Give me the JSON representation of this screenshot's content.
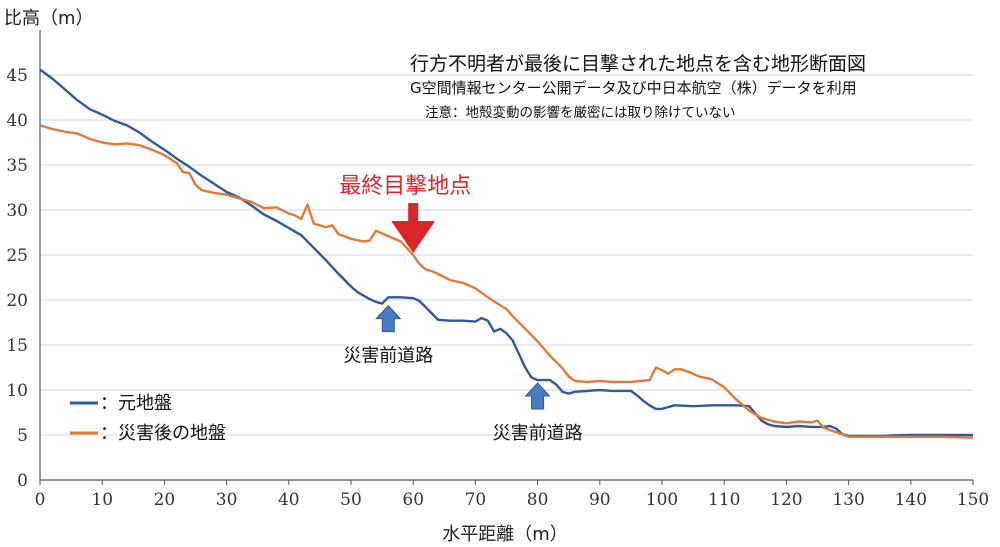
{
  "chart_data": {
    "type": "line",
    "title": "行方不明者が最後に目撃された地点を含む地形断面図",
    "subtitle": "G空間情報センター公開データ及び中日本航空（株）データを利用",
    "note": "注意：地殻変動の影響を厳密には取り除けていない",
    "xlabel": "水平距離（m）",
    "ylabel": "比高（m）",
    "xlim": [
      0,
      150
    ],
    "ylim": [
      0,
      50
    ],
    "xticks": [
      "0",
      "10",
      "20",
      "30",
      "40",
      "50",
      "60",
      "70",
      "80",
      "90",
      "100",
      "110",
      "120",
      "130",
      "140",
      "150"
    ],
    "yticks": [
      "0",
      "5",
      "10",
      "15",
      "20",
      "25",
      "30",
      "35",
      "40",
      "45"
    ],
    "grid": "horizontal",
    "legend_position": "bottom-left",
    "series": [
      {
        "name": "：元地盤",
        "color": "#2e5a9c",
        "points": [
          [
            0,
            45.6
          ],
          [
            2,
            44.6
          ],
          [
            4,
            43.4
          ],
          [
            6,
            42.2
          ],
          [
            8,
            41.2
          ],
          [
            10,
            40.6
          ],
          [
            12,
            39.9
          ],
          [
            14,
            39.4
          ],
          [
            16,
            38.6
          ],
          [
            18,
            37.6
          ],
          [
            20,
            36.7
          ],
          [
            22,
            35.7
          ],
          [
            24,
            34.8
          ],
          [
            26,
            33.8
          ],
          [
            28,
            32.9
          ],
          [
            30,
            32.0
          ],
          [
            32,
            31.4
          ],
          [
            34,
            30.5
          ],
          [
            36,
            29.5
          ],
          [
            38,
            28.8
          ],
          [
            40,
            28.0
          ],
          [
            42,
            27.2
          ],
          [
            44,
            25.8
          ],
          [
            46,
            24.4
          ],
          [
            48,
            22.9
          ],
          [
            50,
            21.5
          ],
          [
            51,
            20.9
          ],
          [
            52,
            20.5
          ],
          [
            53,
            20.1
          ],
          [
            54,
            19.8
          ],
          [
            55,
            19.6
          ],
          [
            56,
            20.3
          ],
          [
            58,
            20.3
          ],
          [
            60,
            20.2
          ],
          [
            61,
            19.9
          ],
          [
            62,
            19.2
          ],
          [
            63,
            18.5
          ],
          [
            64,
            17.8
          ],
          [
            66,
            17.7
          ],
          [
            68,
            17.7
          ],
          [
            70,
            17.6
          ],
          [
            71,
            18.0
          ],
          [
            72,
            17.7
          ],
          [
            73,
            16.5
          ],
          [
            74,
            16.8
          ],
          [
            75,
            16.3
          ],
          [
            76,
            15.5
          ],
          [
            77,
            14.0
          ],
          [
            78,
            12.5
          ],
          [
            79,
            11.4
          ],
          [
            80,
            11.1
          ],
          [
            82,
            11.1
          ],
          [
            83,
            10.6
          ],
          [
            84,
            9.8
          ],
          [
            85,
            9.6
          ],
          [
            86,
            9.8
          ],
          [
            88,
            9.9
          ],
          [
            90,
            10.0
          ],
          [
            92,
            9.9
          ],
          [
            95,
            9.9
          ],
          [
            96,
            9.4
          ],
          [
            97,
            8.8
          ],
          [
            98,
            8.3
          ],
          [
            99,
            7.9
          ],
          [
            100,
            7.9
          ],
          [
            102,
            8.3
          ],
          [
            105,
            8.2
          ],
          [
            108,
            8.3
          ],
          [
            112,
            8.3
          ],
          [
            114,
            8.2
          ],
          [
            115,
            7.4
          ],
          [
            116,
            6.6
          ],
          [
            117,
            6.2
          ],
          [
            118,
            6.0
          ],
          [
            120,
            5.9
          ],
          [
            122,
            6.0
          ],
          [
            124,
            5.9
          ],
          [
            126,
            5.9
          ],
          [
            127,
            6.0
          ],
          [
            128,
            5.7
          ],
          [
            129,
            5.1
          ],
          [
            130,
            4.9
          ],
          [
            135,
            4.9
          ],
          [
            140,
            5.0
          ],
          [
            145,
            5.0
          ],
          [
            150,
            5.0
          ]
        ]
      },
      {
        "name": "：災害後の地盤",
        "color": "#e07b39",
        "points": [
          [
            0,
            39.4
          ],
          [
            2,
            39.0
          ],
          [
            4,
            38.7
          ],
          [
            6,
            38.5
          ],
          [
            8,
            37.9
          ],
          [
            10,
            37.5
          ],
          [
            12,
            37.3
          ],
          [
            14,
            37.4
          ],
          [
            16,
            37.2
          ],
          [
            18,
            36.7
          ],
          [
            20,
            36.1
          ],
          [
            22,
            35.2
          ],
          [
            23,
            34.2
          ],
          [
            24,
            34.1
          ],
          [
            25,
            32.8
          ],
          [
            26,
            32.2
          ],
          [
            28,
            31.9
          ],
          [
            30,
            31.7
          ],
          [
            32,
            31.3
          ],
          [
            34,
            30.9
          ],
          [
            36,
            30.2
          ],
          [
            38,
            30.3
          ],
          [
            40,
            29.6
          ],
          [
            41,
            29.4
          ],
          [
            42,
            29.0
          ],
          [
            43,
            30.6
          ],
          [
            44,
            28.5
          ],
          [
            46,
            28.1
          ],
          [
            47,
            28.3
          ],
          [
            48,
            27.3
          ],
          [
            50,
            26.8
          ],
          [
            52,
            26.5
          ],
          [
            53,
            26.6
          ],
          [
            54,
            27.7
          ],
          [
            56,
            27.1
          ],
          [
            58,
            26.5
          ],
          [
            60,
            25.0
          ],
          [
            61,
            24.0
          ],
          [
            62,
            23.4
          ],
          [
            63,
            23.2
          ],
          [
            64,
            22.9
          ],
          [
            66,
            22.2
          ],
          [
            68,
            21.9
          ],
          [
            70,
            21.3
          ],
          [
            72,
            20.3
          ],
          [
            74,
            19.4
          ],
          [
            75,
            19.0
          ],
          [
            76,
            18.2
          ],
          [
            78,
            16.8
          ],
          [
            80,
            15.4
          ],
          [
            82,
            13.8
          ],
          [
            84,
            12.4
          ],
          [
            85,
            11.5
          ],
          [
            86,
            11.0
          ],
          [
            88,
            10.9
          ],
          [
            90,
            11.0
          ],
          [
            92,
            10.9
          ],
          [
            95,
            10.9
          ],
          [
            98,
            11.1
          ],
          [
            99,
            12.5
          ],
          [
            100,
            12.2
          ],
          [
            101,
            11.8
          ],
          [
            102,
            12.3
          ],
          [
            103,
            12.3
          ],
          [
            104,
            12.1
          ],
          [
            105,
            11.8
          ],
          [
            106,
            11.5
          ],
          [
            108,
            11.2
          ],
          [
            110,
            10.3
          ],
          [
            112,
            8.9
          ],
          [
            114,
            7.7
          ],
          [
            116,
            6.9
          ],
          [
            118,
            6.5
          ],
          [
            120,
            6.3
          ],
          [
            122,
            6.5
          ],
          [
            124,
            6.4
          ],
          [
            125,
            6.6
          ],
          [
            126,
            5.8
          ],
          [
            128,
            5.3
          ],
          [
            130,
            4.8
          ],
          [
            135,
            4.8
          ],
          [
            140,
            4.8
          ],
          [
            145,
            4.8
          ],
          [
            150,
            4.7
          ]
        ]
      }
    ],
    "annotations": [
      {
        "text": "最終目撃地点",
        "color": "#d9262b",
        "x": 60,
        "y": 25
      },
      {
        "text": "災害前道路",
        "color": "#2e5a9c",
        "x": 56,
        "y": 19.6
      },
      {
        "text": "災害前道路",
        "color": "#2e5a9c",
        "x": 80,
        "y": 11
      }
    ]
  }
}
